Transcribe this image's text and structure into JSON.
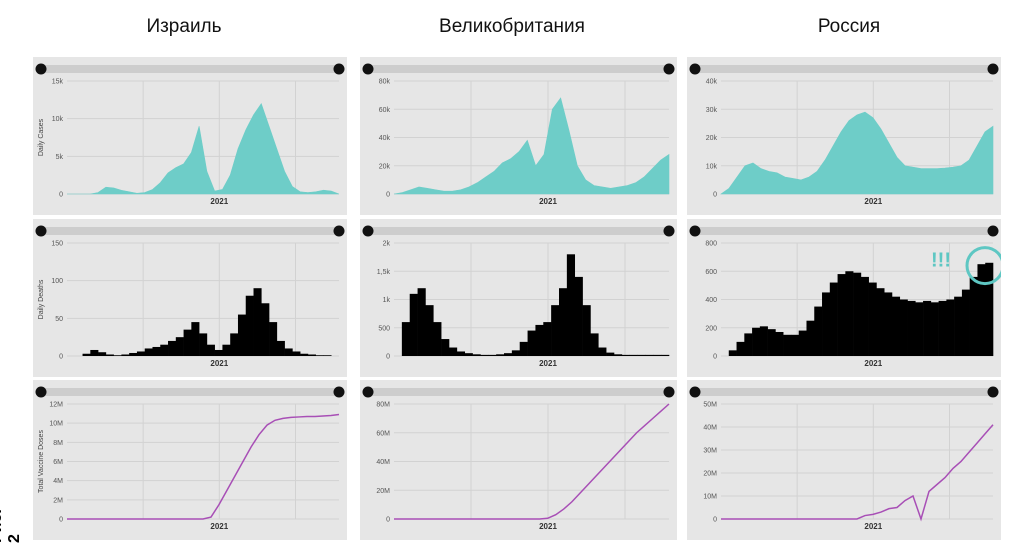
{
  "side_label": "Рис. 2",
  "columns": [
    {
      "title": "Израиль"
    },
    {
      "title": "Великобритания"
    },
    {
      "title": "Россия"
    }
  ],
  "colors": {
    "cases": "#6ecdc8",
    "deaths": "#000000",
    "vaccine": "#a84fb6",
    "panel_bg": "#e6e6e6",
    "slider": "#cdcdcd",
    "annotation": "#5ec7c3"
  },
  "x_axis": {
    "year_label": "2021"
  },
  "annotation": {
    "text": "!!!"
  },
  "chart_data": [
    {
      "type": "area",
      "country": "Израиль",
      "ylabel": "Daily Cases",
      "yticks": [
        "15k",
        "10k",
        "5k",
        "0"
      ],
      "ylim": [
        0,
        15000
      ],
      "y": [
        0,
        0,
        0,
        0,
        200,
        900,
        800,
        500,
        300,
        100,
        200,
        600,
        1500,
        2800,
        3500,
        4000,
        5500,
        9000,
        3000,
        400,
        600,
        2500,
        6000,
        8500,
        10500,
        12000,
        9000,
        6000,
        3000,
        1000,
        300,
        200,
        300,
        500,
        400,
        0
      ]
    },
    {
      "type": "area",
      "country": "Великобритания",
      "ylabel": "",
      "yticks": [
        "80k",
        "60k",
        "40k",
        "20k",
        "0"
      ],
      "ylim": [
        0,
        80000
      ],
      "y": [
        0,
        1000,
        3000,
        5000,
        4000,
        3000,
        2000,
        2000,
        3000,
        5000,
        8000,
        12000,
        16000,
        22000,
        25000,
        30000,
        38000,
        20000,
        28000,
        60000,
        68000,
        45000,
        20000,
        10000,
        6000,
        5000,
        4000,
        5000,
        6000,
        8000,
        12000,
        18000,
        24000,
        28000
      ]
    },
    {
      "type": "area",
      "country": "Россия",
      "ylabel": "",
      "yticks": [
        "40k",
        "30k",
        "20k",
        "10k",
        "0"
      ],
      "ylim": [
        0,
        40000
      ],
      "y": [
        0,
        2000,
        6000,
        10000,
        11000,
        9000,
        8000,
        7500,
        6000,
        5500,
        5000,
        6000,
        8000,
        12000,
        17000,
        22000,
        26000,
        28000,
        29000,
        27000,
        23000,
        18000,
        13000,
        10000,
        9500,
        9000,
        9000,
        9000,
        9200,
        9500,
        10000,
        12000,
        17000,
        22000,
        24000
      ]
    },
    {
      "type": "bar",
      "country": "Израиль",
      "ylabel": "Daily Deaths",
      "yticks": [
        "150",
        "100",
        "50",
        "0"
      ],
      "ylim": [
        0,
        150
      ],
      "y": [
        0,
        0,
        3,
        8,
        5,
        2,
        1,
        2,
        4,
        6,
        10,
        12,
        15,
        20,
        25,
        35,
        45,
        30,
        15,
        8,
        15,
        30,
        55,
        80,
        90,
        70,
        45,
        20,
        10,
        6,
        3,
        2,
        1,
        1,
        0
      ]
    },
    {
      "type": "bar",
      "country": "Великобритания",
      "ylabel": "",
      "yticks": [
        "2k",
        "1,5k",
        "1k",
        "500",
        "0"
      ],
      "ylim": [
        0,
        2000
      ],
      "y": [
        0,
        600,
        1100,
        1200,
        900,
        600,
        300,
        150,
        80,
        50,
        30,
        20,
        20,
        30,
        50,
        100,
        250,
        450,
        550,
        600,
        900,
        1200,
        1800,
        1400,
        900,
        400,
        150,
        60,
        30,
        20,
        20,
        20,
        20,
        20,
        20
      ]
    },
    {
      "type": "bar",
      "country": "Россия",
      "ylabel": "",
      "yticks": [
        "800",
        "600",
        "400",
        "200",
        "0"
      ],
      "ylim": [
        0,
        800
      ],
      "y": [
        0,
        40,
        100,
        160,
        200,
        210,
        190,
        170,
        150,
        150,
        180,
        250,
        350,
        450,
        520,
        580,
        600,
        590,
        560,
        520,
        480,
        450,
        420,
        400,
        390,
        380,
        390,
        380,
        390,
        400,
        420,
        470,
        560,
        650,
        660
      ]
    },
    {
      "type": "line",
      "country": "Израиль",
      "ylabel": "Total Vaccine Doses",
      "yticks": [
        "12M",
        "10M",
        "8M",
        "6M",
        "4M",
        "2M",
        "0"
      ],
      "ylim": [
        0,
        12000000
      ],
      "y": [
        0,
        0,
        0,
        0,
        0,
        0,
        0,
        0,
        0,
        0,
        0,
        0,
        0,
        0,
        0,
        0,
        0,
        0,
        200000,
        1500000,
        3000000,
        4500000,
        6000000,
        7500000,
        8800000,
        9800000,
        10300000,
        10500000,
        10600000,
        10650000,
        10700000,
        10700000,
        10750000,
        10800000,
        10900000
      ]
    },
    {
      "type": "line",
      "country": "Великобритания",
      "ylabel": "",
      "yticks": [
        "80M",
        "60M",
        "40M",
        "20M",
        "0"
      ],
      "ylim": [
        0,
        80000000
      ],
      "y": [
        0,
        0,
        0,
        0,
        0,
        0,
        0,
        0,
        0,
        0,
        0,
        0,
        0,
        0,
        0,
        0,
        0,
        0,
        0,
        500000,
        3000000,
        7000000,
        12000000,
        18000000,
        24000000,
        30000000,
        36000000,
        42000000,
        48000000,
        54000000,
        60000000,
        65000000,
        70000000,
        75000000,
        80000000
      ]
    },
    {
      "type": "line",
      "country": "Россия",
      "ylabel": "",
      "yticks": [
        "50M",
        "40M",
        "30M",
        "20M",
        "10M",
        "0"
      ],
      "ylim": [
        0,
        50000000
      ],
      "y": [
        0,
        0,
        0,
        0,
        0,
        0,
        0,
        0,
        0,
        0,
        0,
        0,
        0,
        0,
        0,
        0,
        0,
        0,
        1500000,
        2000000,
        3000000,
        4500000,
        5000000,
        8000000,
        10000000,
        0,
        12000000,
        15000000,
        18000000,
        22000000,
        25000000,
        29000000,
        33000000,
        37000000,
        41000000
      ]
    }
  ]
}
